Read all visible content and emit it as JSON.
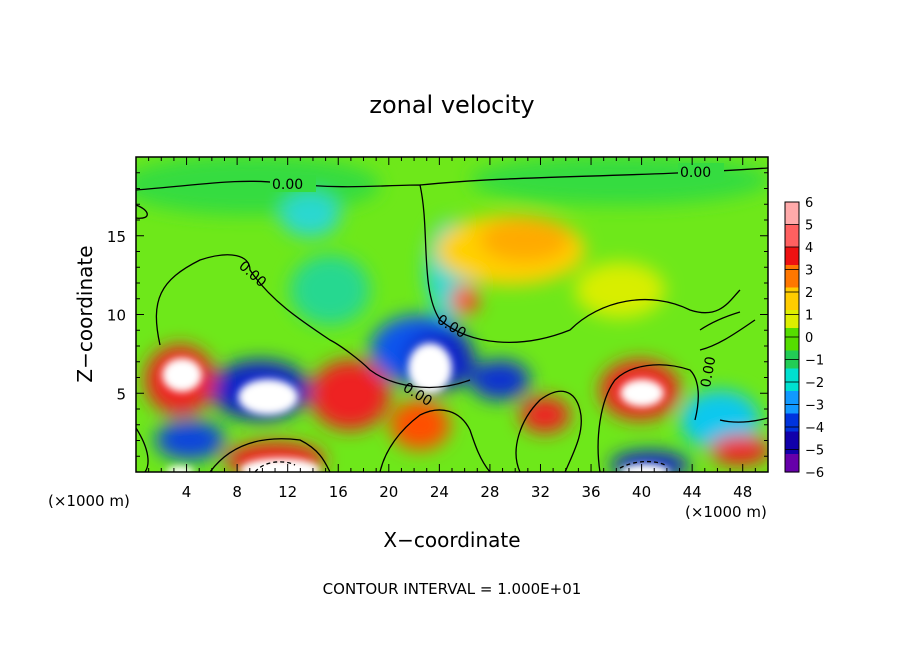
{
  "chart_data": {
    "type": "heatmap",
    "title": "zonal velocity",
    "xlabel": "X−coordinate",
    "ylabel": "Z−coordinate",
    "x_unit_left": "(×1000 m)",
    "x_unit_right": "(×1000 m)",
    "footer": "CONTOUR INTERVAL = 1.000E+01",
    "xlim": [
      0,
      50
    ],
    "ylim": [
      0,
      20
    ],
    "x_ticks": [
      "4",
      "8",
      "12",
      "16",
      "20",
      "24",
      "28",
      "32",
      "36",
      "40",
      "44",
      "48"
    ],
    "x_tick_values": [
      4,
      8,
      12,
      16,
      20,
      24,
      28,
      32,
      36,
      40,
      44,
      48
    ],
    "y_ticks": [
      "5",
      "10",
      "15"
    ],
    "y_tick_values": [
      5,
      10,
      15
    ],
    "colorbar": {
      "labels": [
        "6",
        "5",
        "4",
        "3",
        "2",
        "1",
        "0",
        "−1",
        "−2",
        "−3",
        "−4",
        "−5",
        "−6"
      ],
      "values": [
        6,
        5,
        4,
        3,
        2,
        1,
        0,
        -1,
        -2,
        -3,
        -4,
        -5,
        -6
      ],
      "colors": [
        "#ffaaaa",
        "#ff6060",
        "#ee1111",
        "#ff7700",
        "#ffcc00",
        "#ddee00",
        "#55dd00",
        "#22cc55",
        "#00e0d0",
        "#1199ff",
        "#0033dd",
        "#1100aa",
        "#6600aa"
      ]
    },
    "contour_labels": [
      "0.00",
      "0.00",
      "0.00",
      "0.00",
      "0.00",
      "0.00"
    ]
  }
}
